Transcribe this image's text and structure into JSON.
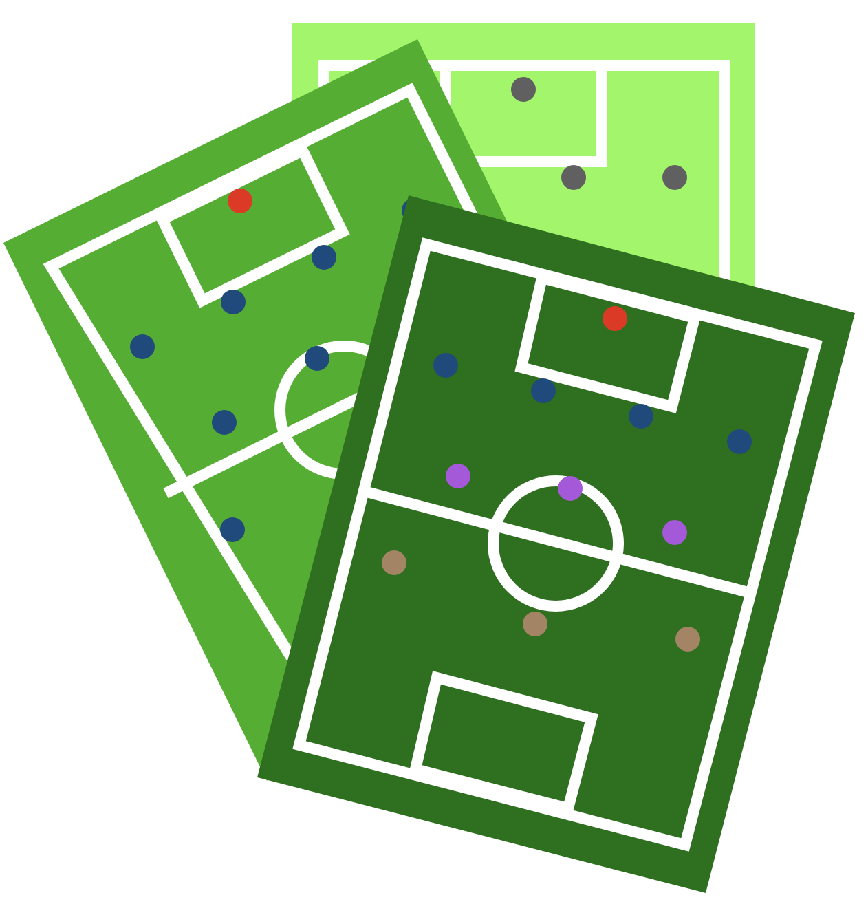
{
  "illustration": {
    "subject": "",
    "colors": {
      "background": "#ffffff",
      "line": "#ffffff",
      "board_back": "#a3f56b",
      "board_middle": "#55ae33",
      "board_front": "#2f6f20",
      "goalkeeper": "#da3a26",
      "defender": "#1f4a7b",
      "midfielder": "#a459d8",
      "forward": "#a38566",
      "neutral": "#606060"
    },
    "boards": [
      {
        "name": "back",
        "color_key": "board_back",
        "player_count": 3
      },
      {
        "name": "middle",
        "color_key": "board_middle",
        "player_count": 8
      },
      {
        "name": "front",
        "color_key": "board_front",
        "player_count": 11
      }
    ]
  }
}
